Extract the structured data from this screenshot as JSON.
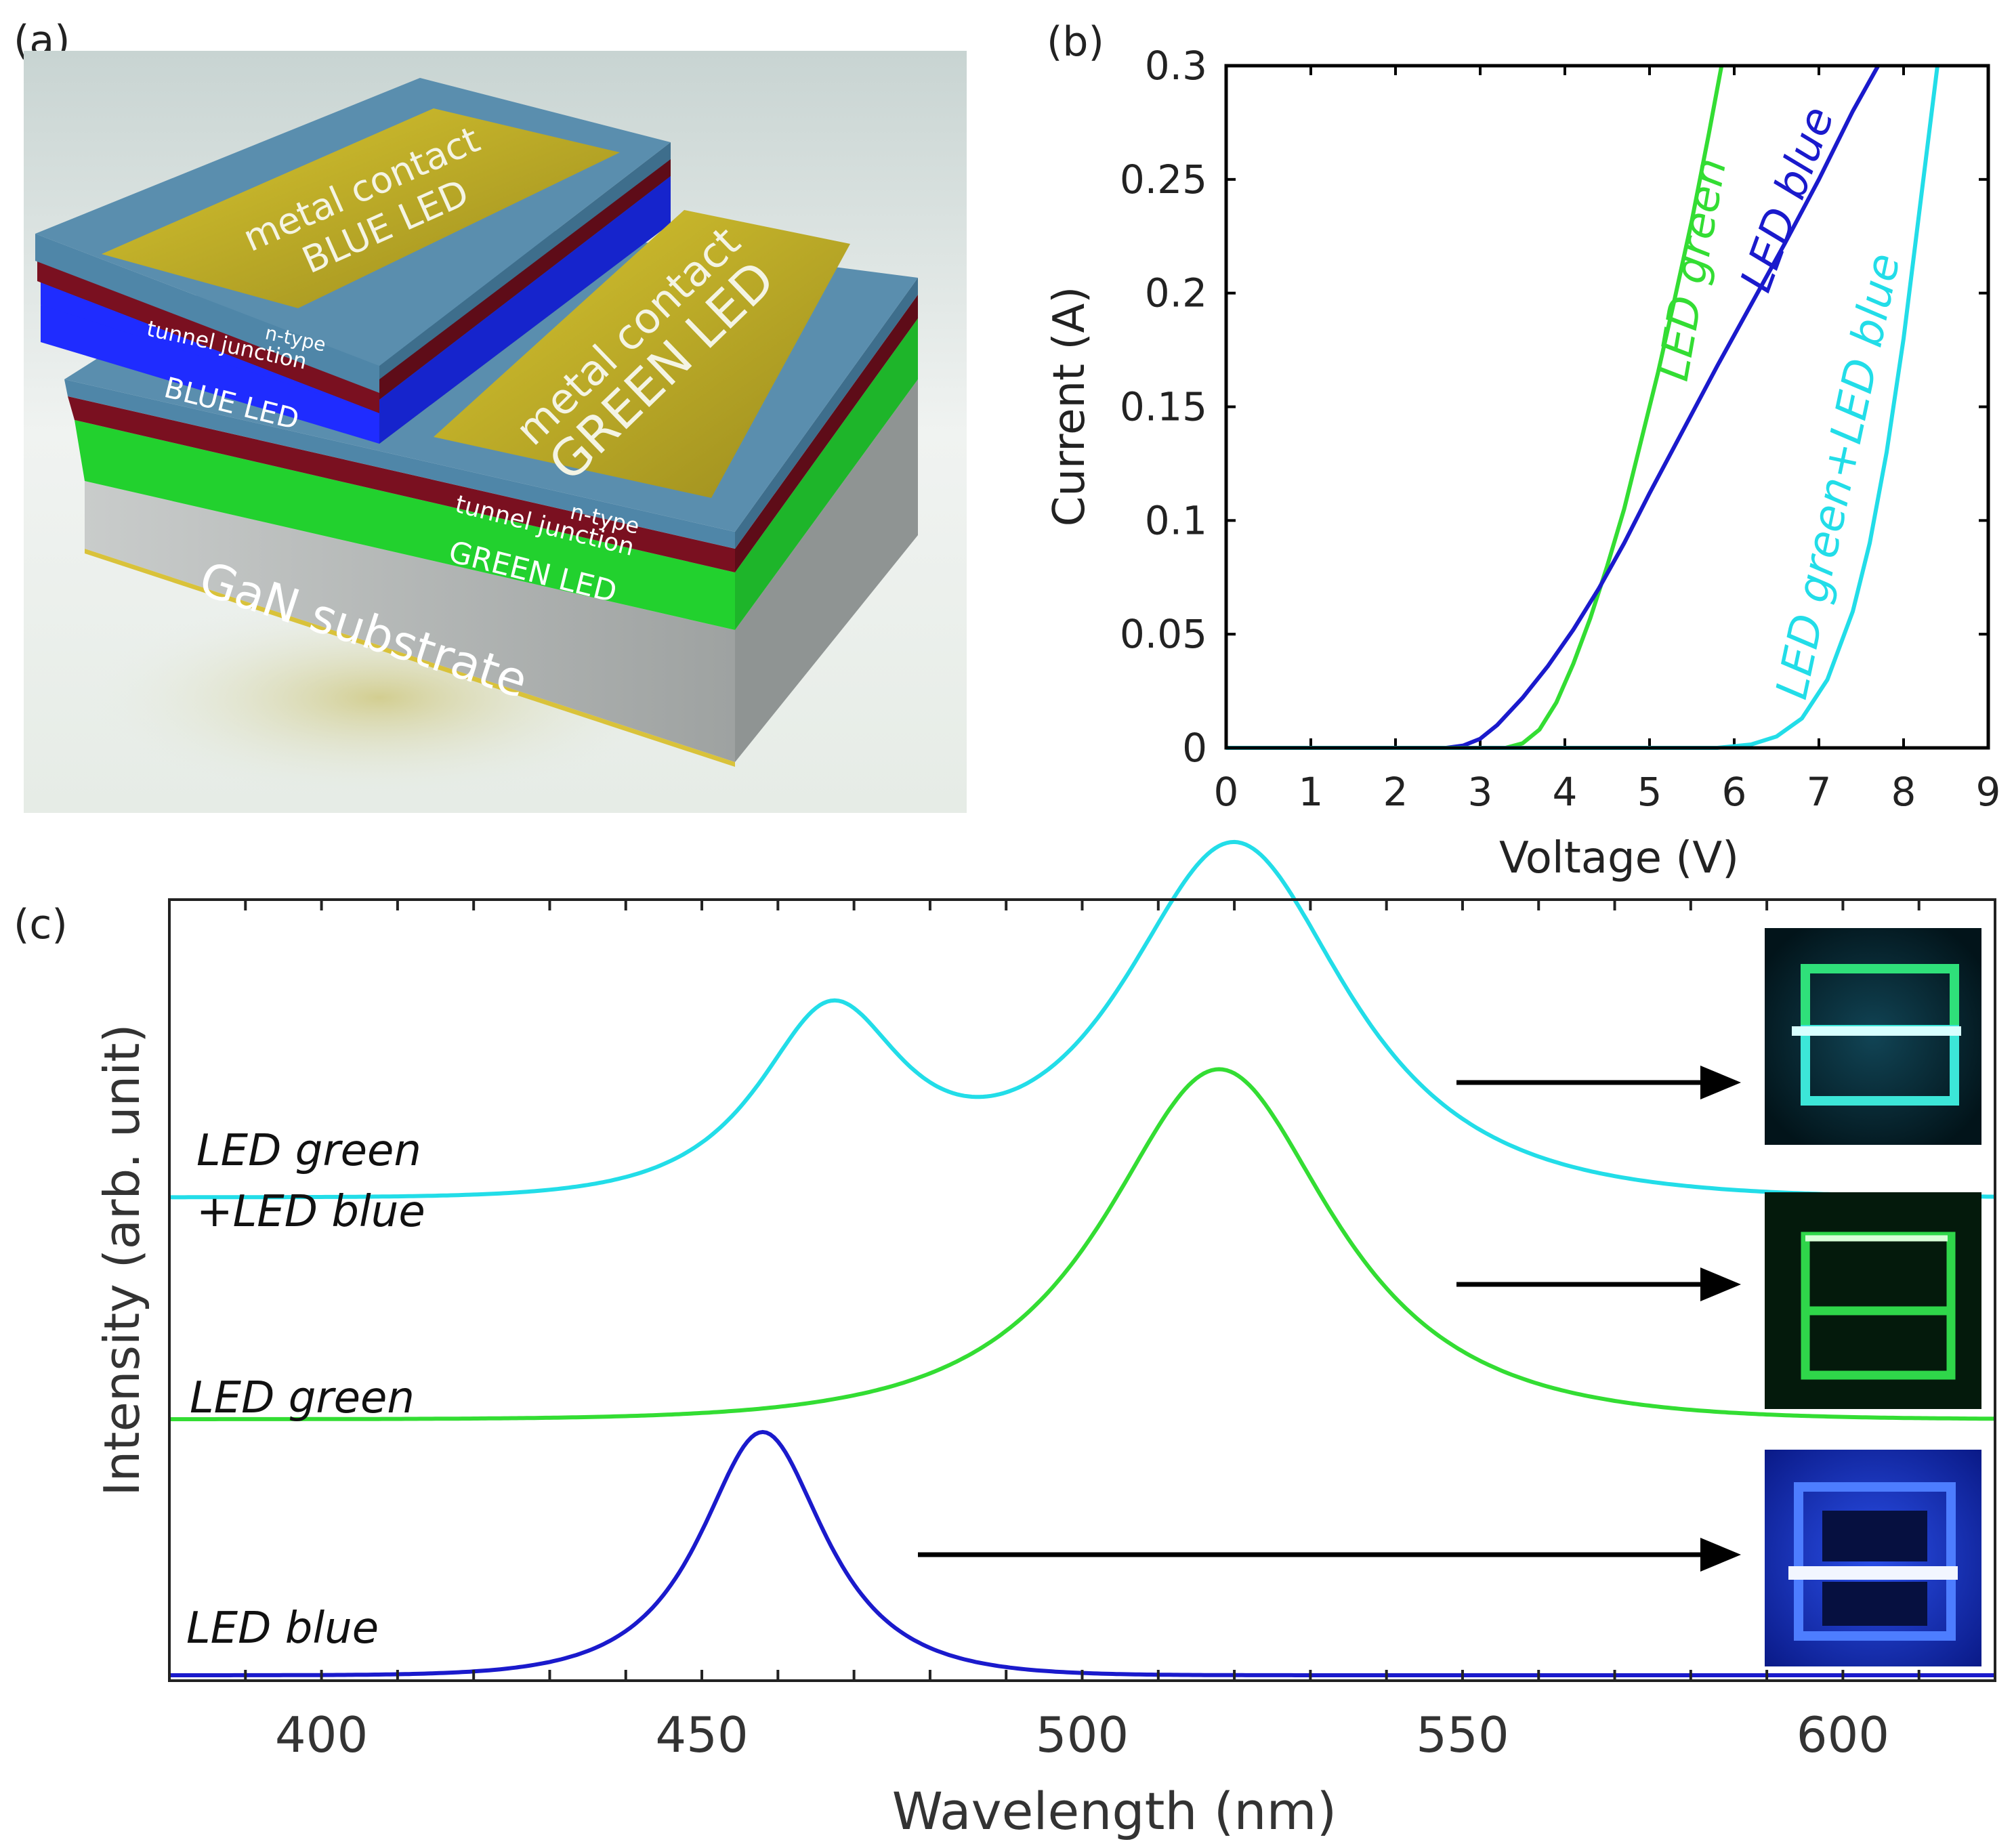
{
  "panels": {
    "a": {
      "label": "(a)",
      "blue_contact_line1": "metal contact",
      "blue_contact_line2": "BLUE LED",
      "green_contact_line1": "metal contact",
      "green_contact_line2": "GREEN LED",
      "upper_ntype": "n-type",
      "upper_tunnel": "tunnel junction",
      "upper_led": "BLUE LED",
      "lower_ntype": "n-type",
      "lower_tunnel": "tunnel junction",
      "lower_led": "GREEN LED",
      "substrate": "GaN substrate",
      "colors": {
        "contact": "#c9b62a",
        "ntype": "#4f86a8",
        "tunnel": "#7a1020",
        "blue_led": "#1f2cff",
        "green_led": "#22d12e",
        "substrate": "#b9bcbc"
      }
    },
    "c": {
      "label": "(c)",
      "label_combined_1": "LED green",
      "label_combined_2": "+LED blue",
      "label_green": "LED green",
      "label_blue": "LED blue"
    }
  },
  "chart_data": [
    {
      "panel": "(b)",
      "type": "line",
      "title": "",
      "xlabel": "Voltage (V)",
      "ylabel": "Current (A)",
      "xlim": [
        0,
        9
      ],
      "ylim": [
        0,
        0.3
      ],
      "xticks": [
        "0",
        "1",
        "2",
        "3",
        "4",
        "5",
        "6",
        "7",
        "8",
        "9"
      ],
      "yticks": [
        "0",
        "0.05",
        "0.1",
        "0.15",
        "0.2",
        "0.25",
        "0.3"
      ],
      "series": [
        {
          "name": "LED green",
          "color": "#33dd33",
          "x": [
            0,
            3.3,
            3.5,
            3.7,
            3.9,
            4.1,
            4.3,
            4.5,
            4.7,
            4.9,
            5.1,
            5.3,
            5.5,
            5.7,
            5.85
          ],
          "y": [
            0,
            0,
            0.002,
            0.008,
            0.02,
            0.037,
            0.057,
            0.08,
            0.105,
            0.135,
            0.165,
            0.198,
            0.232,
            0.27,
            0.3
          ]
        },
        {
          "name": "LED blue",
          "color": "#1a1acc",
          "x": [
            0,
            2.6,
            2.8,
            3.0,
            3.2,
            3.5,
            3.8,
            4.1,
            4.4,
            4.7,
            5.0,
            5.4,
            5.8,
            6.2,
            6.6,
            7.0,
            7.4,
            7.7
          ],
          "y": [
            0,
            0,
            0.001,
            0.004,
            0.01,
            0.022,
            0.036,
            0.052,
            0.07,
            0.09,
            0.112,
            0.14,
            0.168,
            0.195,
            0.222,
            0.25,
            0.28,
            0.3
          ]
        },
        {
          "name": "LED green+LED blue",
          "color": "#22dde8",
          "x": [
            0,
            5.8,
            6.2,
            6.5,
            6.8,
            7.1,
            7.4,
            7.6,
            7.8,
            8.0,
            8.2,
            8.4
          ],
          "y": [
            0,
            0,
            0.0015,
            0.005,
            0.013,
            0.03,
            0.06,
            0.09,
            0.13,
            0.18,
            0.24,
            0.3
          ]
        }
      ]
    },
    {
      "panel": "(c)",
      "type": "line",
      "title": "",
      "xlabel": "Wavelength (nm)",
      "ylabel": "Intensity (arb. unit)",
      "xlim": [
        380,
        620
      ],
      "xticks": [
        "400",
        "450",
        "500",
        "550",
        "600"
      ],
      "series": [
        {
          "name": "LED green+LED blue",
          "color": "#22dde8",
          "offset": 1.12,
          "peaks": [
            {
              "center": 467,
              "width": 14,
              "height": 0.42
            },
            {
              "center": 520,
              "width": 22,
              "height": 0.83
            }
          ]
        },
        {
          "name": "LED green",
          "color": "#33dd33",
          "offset": 0.6,
          "peaks": [
            {
              "center": 518,
              "width": 22,
              "height": 0.82
            }
          ]
        },
        {
          "name": "LED blue",
          "color": "#1a1acc",
          "offset": 0.0,
          "peaks": [
            {
              "center": 458,
              "width": 12,
              "height": 0.57
            }
          ]
        }
      ]
    }
  ]
}
